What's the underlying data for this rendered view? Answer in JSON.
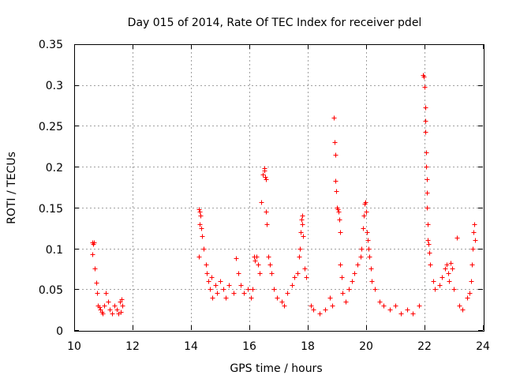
{
  "chart_data": {
    "type": "scatter",
    "title": "Day 015 of 2014, Rate Of TEC Index for receiver pdel",
    "xlabel": "GPS time / hours",
    "ylabel": "ROTI / TECUs",
    "xlim": [
      10,
      24
    ],
    "ylim": [
      0,
      0.35
    ],
    "grid": true,
    "marker": "plus",
    "color": "#ff0000",
    "x_ticks": [
      10,
      12,
      14,
      16,
      18,
      20,
      22,
      24
    ],
    "x_tick_labels": [
      "10",
      "12",
      "14",
      "16",
      "18",
      "20",
      "22",
      "24"
    ],
    "y_ticks": [
      0,
      0.05,
      0.1,
      0.15,
      0.2,
      0.25,
      0.3,
      0.35
    ],
    "y_tick_labels": [
      "0",
      "0.05",
      "0.1",
      "0.15",
      "0.2",
      "0.25",
      "0.3",
      "0.35"
    ],
    "series": [
      {
        "name": "ROTI",
        "x": [
          10.62,
          10.65,
          10.68,
          10.62,
          10.7,
          10.75,
          10.78,
          10.82,
          10.86,
          10.9,
          10.94,
          10.98,
          11.02,
          11.08,
          11.15,
          11.22,
          11.3,
          11.38,
          11.45,
          11.52,
          11.58,
          11.62,
          11.66,
          11.6,
          14.28,
          14.3,
          14.32,
          14.3,
          14.35,
          14.38,
          14.42,
          14.27,
          14.5,
          14.55,
          14.6,
          14.65,
          14.7,
          14.72,
          14.85,
          14.9,
          15.0,
          15.1,
          15.2,
          15.3,
          15.45,
          15.55,
          15.62,
          15.7,
          15.8,
          15.95,
          16.05,
          16.1,
          16.15,
          16.2,
          16.25,
          16.3,
          16.35,
          16.4,
          16.45,
          16.5,
          16.52,
          16.54,
          16.56,
          16.58,
          16.6,
          16.65,
          16.7,
          16.75,
          16.85,
          16.95,
          17.1,
          17.2,
          17.3,
          17.45,
          17.55,
          17.65,
          17.7,
          17.73,
          17.75,
          17.78,
          17.8,
          17.82,
          17.85,
          17.9,
          17.95,
          18.1,
          18.2,
          18.4,
          18.6,
          18.75,
          18.85,
          18.9,
          18.92,
          18.94,
          18.95,
          18.97,
          19.0,
          19.02,
          19.05,
          19.08,
          19.1,
          19.12,
          19.15,
          19.2,
          19.3,
          19.4,
          19.5,
          19.6,
          19.7,
          19.8,
          19.85,
          19.9,
          19.92,
          19.95,
          19.98,
          20.0,
          20.02,
          20.05,
          20.08,
          20.1,
          20.15,
          20.2,
          20.3,
          20.45,
          20.6,
          20.8,
          21.0,
          21.2,
          21.4,
          21.6,
          21.8,
          21.95,
          21.98,
          22.0,
          22.02,
          22.03,
          22.04,
          22.05,
          22.06,
          22.07,
          22.08,
          22.09,
          22.1,
          22.12,
          22.14,
          22.16,
          22.2,
          22.3,
          22.35,
          22.5,
          22.6,
          22.7,
          22.75,
          22.8,
          22.85,
          22.9,
          22.95,
          23.0,
          23.1,
          23.2,
          23.3,
          23.45,
          23.55,
          23.6,
          23.62,
          23.65,
          23.68,
          23.7,
          23.72
        ],
        "y": [
          0.107,
          0.105,
          0.107,
          0.093,
          0.075,
          0.058,
          0.045,
          0.03,
          0.028,
          0.025,
          0.022,
          0.02,
          0.03,
          0.045,
          0.035,
          0.025,
          0.02,
          0.03,
          0.025,
          0.02,
          0.035,
          0.038,
          0.03,
          0.022,
          0.148,
          0.145,
          0.14,
          0.13,
          0.125,
          0.115,
          0.1,
          0.09,
          0.08,
          0.07,
          0.06,
          0.05,
          0.065,
          0.04,
          0.055,
          0.045,
          0.06,
          0.05,
          0.04,
          0.055,
          0.045,
          0.088,
          0.07,
          0.055,
          0.045,
          0.05,
          0.04,
          0.05,
          0.09,
          0.085,
          0.09,
          0.08,
          0.07,
          0.157,
          0.19,
          0.198,
          0.195,
          0.188,
          0.185,
          0.145,
          0.13,
          0.09,
          0.08,
          0.07,
          0.05,
          0.04,
          0.035,
          0.03,
          0.045,
          0.055,
          0.065,
          0.07,
          0.09,
          0.1,
          0.12,
          0.135,
          0.14,
          0.13,
          0.115,
          0.075,
          0.065,
          0.03,
          0.025,
          0.02,
          0.025,
          0.04,
          0.03,
          0.26,
          0.23,
          0.215,
          0.183,
          0.17,
          0.15,
          0.148,
          0.145,
          0.135,
          0.12,
          0.08,
          0.065,
          0.045,
          0.035,
          0.05,
          0.06,
          0.07,
          0.08,
          0.09,
          0.1,
          0.125,
          0.14,
          0.155,
          0.157,
          0.145,
          0.12,
          0.11,
          0.1,
          0.09,
          0.075,
          0.06,
          0.05,
          0.035,
          0.03,
          0.025,
          0.03,
          0.02,
          0.025,
          0.02,
          0.03,
          0.312,
          0.31,
          0.298,
          0.273,
          0.256,
          0.243,
          0.218,
          0.2,
          0.185,
          0.168,
          0.15,
          0.13,
          0.11,
          0.105,
          0.095,
          0.08,
          0.06,
          0.05,
          0.055,
          0.065,
          0.075,
          0.08,
          0.07,
          0.06,
          0.082,
          0.075,
          0.05,
          0.113,
          0.03,
          0.025,
          0.04,
          0.045,
          0.06,
          0.08,
          0.1,
          0.12,
          0.13,
          0.11
        ]
      }
    ]
  }
}
